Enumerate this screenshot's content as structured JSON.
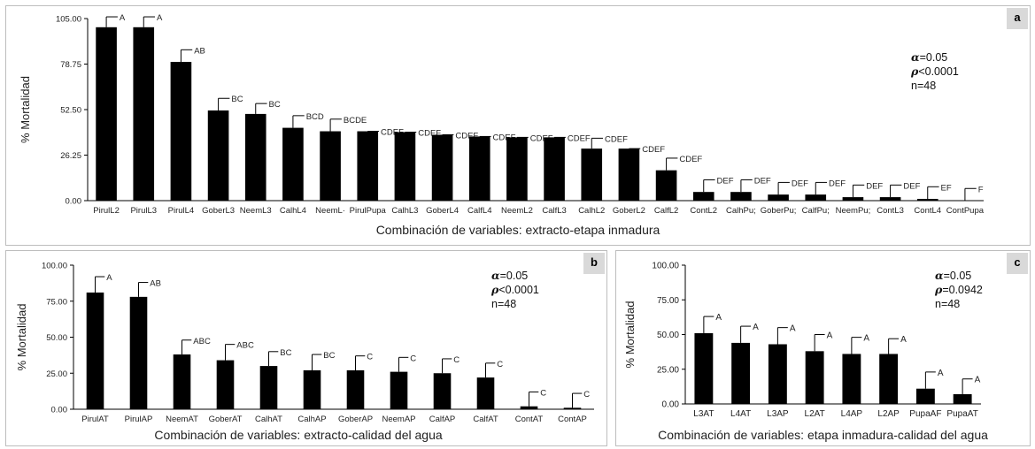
{
  "chart_data": [
    {
      "id": "a",
      "type": "bar",
      "panel_label": "a",
      "ylabel": "% Mortalidad",
      "xlabel": "Combinación de variables: extracto-etapa inmadura",
      "ylim": [
        0,
        105
      ],
      "yticks": [
        "0.00",
        "26.25",
        "52.50",
        "78.75",
        "105.00"
      ],
      "stats": {
        "alpha": "=0.05",
        "rho": "<0.0001",
        "n": "n=48"
      },
      "categories": [
        "PirulL2",
        "PirulL3",
        "PirulL4",
        "GoberL3",
        "NeemL3",
        "CalhL4",
        "NeemL4",
        "PirulPupa",
        "CalhL3",
        "GoberL4",
        "CalfL4",
        "NeemL2",
        "CalfL3",
        "CalhL2",
        "GoberL2",
        "CalfL2",
        "ContL2",
        "CalhPupa",
        "GoberPupa",
        "CalfPupa",
        "NeemPupa",
        "ContL3",
        "ContL4",
        "ContPupa"
      ],
      "tick_labels": [
        "PirulL2",
        "PirulL3",
        "PirulL4",
        "GoberL3",
        "NeemL3",
        "CalhL4",
        "NeemL·",
        "PirulPupa",
        "CalhL3",
        "GoberL4",
        "CalfL4",
        "NeemL2",
        "CalfL3",
        "CalhL2",
        "GoberL2",
        "CalfL2",
        "ContL2",
        "CalhPu;",
        "GoberPu;",
        "CalfPu;",
        "NeemPu;",
        "ContL3",
        "ContL4",
        "ContPupa"
      ],
      "values": [
        100,
        100,
        80,
        52,
        50,
        42,
        40,
        40,
        39.5,
        38,
        37,
        36.5,
        36.5,
        30,
        30,
        17.5,
        5,
        5,
        3.5,
        3.5,
        2,
        2,
        1,
        0
      ],
      "errors": [
        6,
        6,
        7,
        7,
        6,
        7,
        7,
        0,
        0,
        0,
        0,
        0,
        0,
        6,
        0,
        7,
        7,
        7,
        7,
        7,
        7,
        7,
        7,
        7
      ],
      "letters": [
        "A",
        "A",
        "AB",
        "BC",
        "BC",
        "BCD",
        "BCDE",
        "CDEF",
        "CDEF",
        "CDEF",
        "CDEF",
        "CDEF",
        "CDEF",
        "CDEF",
        "CDEF",
        "CDEF",
        "DEF",
        "DEF",
        "DEF",
        "DEF",
        "DEF",
        "DEF",
        "EF",
        "F"
      ]
    },
    {
      "id": "b",
      "type": "bar",
      "panel_label": "b",
      "ylabel": "% Mortalidad",
      "xlabel": "Combinación de variables: extracto-calidad del agua",
      "ylim": [
        0,
        100
      ],
      "yticks": [
        "0.00",
        "25.00",
        "50.00",
        "75.00",
        "100.00"
      ],
      "stats": {
        "alpha": "=0.05",
        "rho": "<0.0001",
        "n": "n=48"
      },
      "categories": [
        "PirulAT",
        "PirulAP",
        "NeemAT",
        "GoberAT",
        "CalhAT",
        "CalhAP",
        "GoberAP",
        "NeemAP",
        "CalfAP",
        "CalfAT",
        "ContAT",
        "ContAP"
      ],
      "tick_labels": [
        "PirulAT",
        "PirulAP",
        "NeemAT",
        "GoberAT",
        "CalhAT",
        "CalhAP",
        "GoberAP",
        "NeemAP",
        "CalfAP",
        "CalfAT",
        "ContAT",
        "ContAP"
      ],
      "values": [
        81,
        78,
        38,
        34,
        30,
        27,
        27,
        26,
        25,
        22,
        2,
        1
      ],
      "errors": [
        11,
        10,
        10,
        11,
        10,
        11,
        10,
        10,
        10,
        10,
        10,
        10
      ],
      "letters": [
        "A",
        "AB",
        "ABC",
        "ABC",
        "BC",
        "BC",
        "C",
        "C",
        "C",
        "C",
        "C",
        "C"
      ]
    },
    {
      "id": "c",
      "type": "bar",
      "panel_label": "c",
      "ylabel": "% Mortalidad",
      "xlabel": "Combinación de variables: etapa inmadura-calidad del agua",
      "ylim": [
        0,
        100
      ],
      "yticks": [
        "0.00",
        "25.00",
        "50.00",
        "75.00",
        "100.00"
      ],
      "stats": {
        "alpha": "=0.05",
        "rho": "=0.0942",
        "n": "n=48"
      },
      "categories": [
        "L3AT",
        "L4AT",
        "L3AP",
        "L2AT",
        "L4AP",
        "L2AP",
        "PupaAP",
        "PupaAT"
      ],
      "tick_labels": [
        "L3AT",
        "L4AT",
        "L3AP",
        "L2AT",
        "L4AP",
        "L2AP",
        "PupaAF",
        "PupaAT"
      ],
      "values": [
        51,
        44,
        43,
        38,
        36,
        36,
        11,
        7
      ],
      "errors": [
        12,
        12,
        12,
        12,
        12,
        11,
        12,
        11
      ],
      "letters": [
        "A",
        "A",
        "A",
        "A",
        "A",
        "A",
        "A",
        "A"
      ]
    }
  ],
  "glyphs": {
    "alpha": "α",
    "rho": "ρ"
  }
}
